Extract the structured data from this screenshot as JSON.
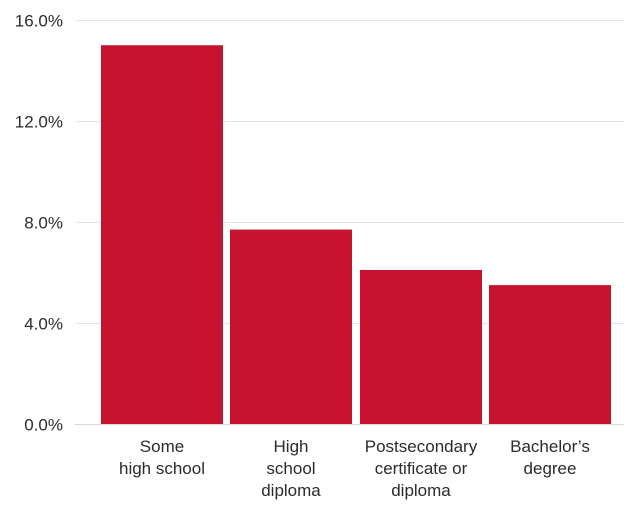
{
  "chart_data": {
    "type": "bar",
    "categories": [
      [
        "Some",
        "high school"
      ],
      [
        "High",
        "school",
        "diploma"
      ],
      [
        "Postsecondary",
        "certificate or",
        "diploma"
      ],
      [
        "Bachelor’s",
        "degree"
      ]
    ],
    "values": [
      15.0,
      7.7,
      6.1,
      5.5
    ],
    "yticks": [
      0,
      4,
      8,
      12,
      16
    ],
    "ytick_labels": [
      "0.0%",
      "4.0%",
      "8.0%",
      "12.0%",
      "16.0%"
    ],
    "ylim": [
      0,
      16
    ],
    "title": "",
    "xlabel": "",
    "ylabel": "",
    "grid": true,
    "bar_color": "#c4122f",
    "grid_color": "#dfe8ed"
  }
}
